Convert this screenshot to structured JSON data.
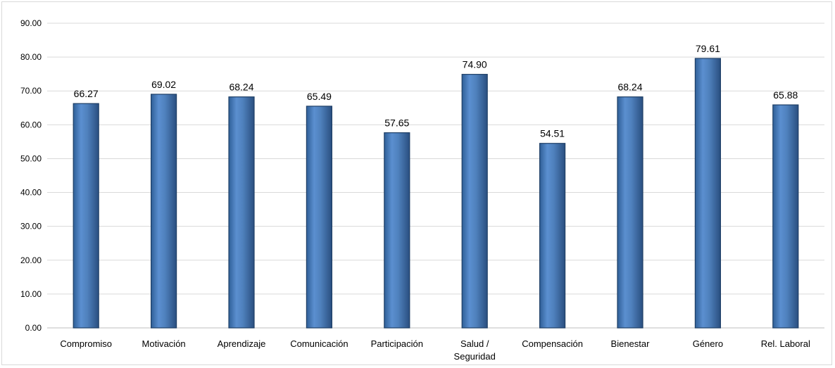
{
  "chart_data": {
    "type": "bar",
    "title": "",
    "xlabel": "",
    "ylabel": "",
    "categories": [
      "Compromiso",
      "Motivación",
      "Aprendizaje",
      "Comunicación",
      "Participación",
      "Salud / Seguridad",
      "Compensación",
      "Bienestar",
      "Género",
      "Rel. Laboral"
    ],
    "values": [
      66.27,
      69.02,
      68.24,
      65.49,
      57.65,
      74.9,
      54.51,
      68.24,
      79.61,
      65.88
    ],
    "data_labels": [
      "66.27",
      "69.02",
      "68.24",
      "65.49",
      "57.65",
      "74.90",
      "54.51",
      "68.24",
      "79.61",
      "65.88"
    ],
    "ylim": [
      0,
      90
    ],
    "y_ticks": [
      "0.00",
      "10.00",
      "20.00",
      "30.00",
      "40.00",
      "50.00",
      "60.00",
      "70.00",
      "80.00",
      "90.00"
    ],
    "grid": true,
    "legend": "none",
    "colors": {
      "bar_fill": "#4f81bd",
      "bar_edge": "#1f3f66",
      "gridline": "#d9d9d9",
      "axis": "#bfbfbf"
    }
  }
}
